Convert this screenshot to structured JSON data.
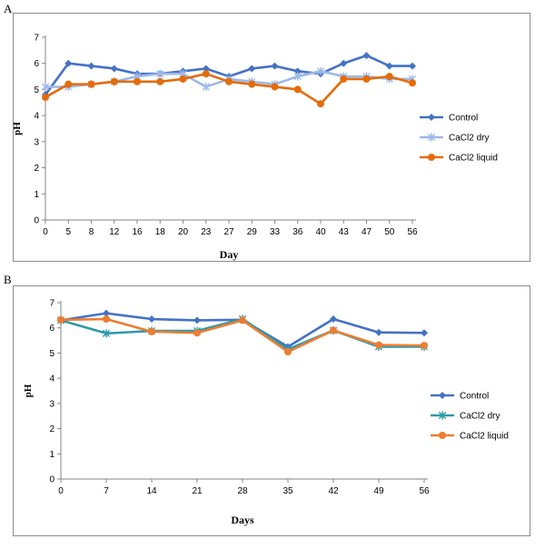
{
  "panels": {
    "a_letter": "A",
    "b_letter": "B"
  },
  "chart_data": [
    {
      "type": "line",
      "panel": "A",
      "xlabel": "Day",
      "ylabel": "pH",
      "ylim": [
        0,
        7
      ],
      "yticks": [
        0,
        1,
        2,
        3,
        4,
        5,
        6,
        7
      ],
      "grid": false,
      "legend_position": "right",
      "categories": [
        "0",
        "5",
        "8",
        "12",
        "16",
        "18",
        "20",
        "23",
        "27",
        "29",
        "33",
        "36",
        "40",
        "43",
        "47",
        "50",
        "56"
      ],
      "series": [
        {
          "name": "Control",
          "color": "#4472c4",
          "marker": "diamond",
          "values": [
            4.8,
            6.0,
            5.9,
            5.8,
            5.6,
            5.6,
            5.7,
            5.8,
            5.5,
            5.8,
            5.9,
            5.7,
            5.6,
            6.0,
            6.3,
            5.9,
            5.9
          ]
        },
        {
          "name": "CaCl2  dry",
          "color": "#9db9e8",
          "marker": "star",
          "values": [
            5.1,
            5.1,
            5.2,
            5.3,
            5.5,
            5.6,
            5.6,
            5.1,
            5.4,
            5.3,
            5.2,
            5.5,
            5.7,
            5.5,
            5.5,
            5.4,
            5.4
          ]
        },
        {
          "name": "CaCl2 liquid",
          "color": "#e36c0a",
          "marker": "circle",
          "values": [
            4.7,
            5.2,
            5.2,
            5.3,
            5.3,
            5.3,
            5.4,
            5.6,
            5.3,
            5.2,
            5.1,
            5.0,
            4.45,
            5.4,
            5.4,
            5.5,
            5.25
          ]
        }
      ]
    },
    {
      "type": "line",
      "panel": "B",
      "xlabel": "Days",
      "ylabel": "pH",
      "ylim": [
        0,
        7
      ],
      "yticks": [
        0,
        1,
        2,
        3,
        4,
        5,
        6,
        7
      ],
      "grid": false,
      "legend_position": "right",
      "categories": [
        "0",
        "7",
        "14",
        "21",
        "28",
        "35",
        "42",
        "49",
        "56"
      ],
      "series": [
        {
          "name": "Control",
          "color": "#4472c4",
          "marker": "diamond",
          "values": [
            6.3,
            6.58,
            6.35,
            6.3,
            6.32,
            5.25,
            6.35,
            5.82,
            5.8
          ]
        },
        {
          "name": "CaCl2 dry",
          "color": "#2e9aa8",
          "marker": "star",
          "values": [
            6.3,
            5.78,
            5.88,
            5.88,
            6.35,
            5.15,
            5.9,
            5.25,
            5.25
          ]
        },
        {
          "name": "CaCl2 liquid",
          "color": "#ed7d31",
          "marker": "circle",
          "values": [
            6.32,
            6.35,
            5.85,
            5.8,
            6.3,
            5.05,
            5.9,
            5.32,
            5.3
          ]
        }
      ]
    }
  ]
}
